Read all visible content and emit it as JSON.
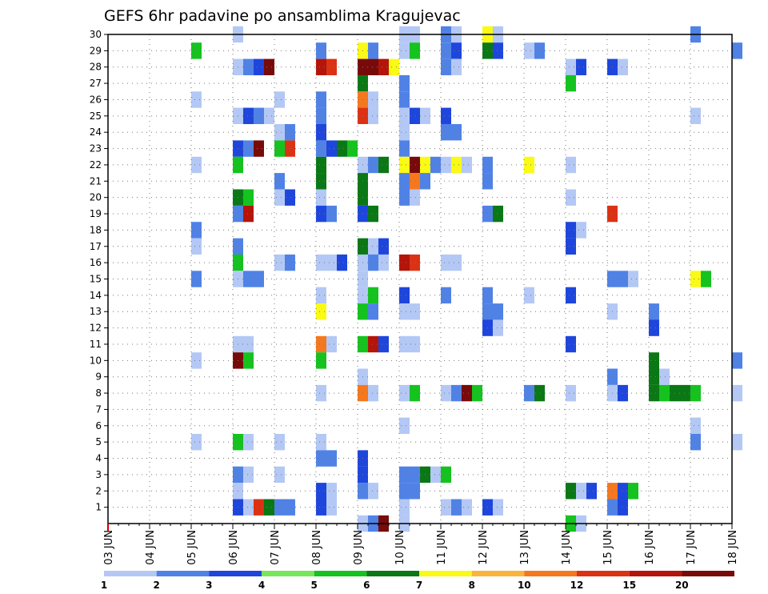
{
  "chart_data": {
    "type": "heatmap",
    "title": "GEFS 6hr padavine po ansamblima Kragujevac",
    "x_labels": [
      "03 JUN",
      "04 JUN",
      "05 JUN",
      "06 JUN",
      "07 JUN",
      "08 JUN",
      "09 JUN",
      "10 JUN",
      "11 JUN",
      "12 JUN",
      "13 JUN",
      "14 JUN",
      "15 JUN",
      "16 JUN",
      "17 JUN",
      "18 JUN"
    ],
    "y_labels": [
      "1",
      "2",
      "3",
      "4",
      "5",
      "6",
      "7",
      "8",
      "9",
      "10",
      "11",
      "12",
      "13",
      "14",
      "15",
      "16",
      "17",
      "18",
      "19",
      "20",
      "21",
      "22",
      "23",
      "24",
      "25",
      "26",
      "27",
      "28",
      "29",
      "30"
    ],
    "ylim": [
      0,
      30
    ],
    "x_steps": 61,
    "grid": true,
    "legend": {
      "placement": "bottom",
      "thresholds": [
        "1",
        "2",
        "3",
        "4",
        "5",
        "6",
        "7",
        "8",
        "10",
        "12",
        "15",
        "20"
      ],
      "colors": [
        "#b4c8f5",
        "#5082e6",
        "#1e46dc",
        "#78e65a",
        "#14c31e",
        "#0a7814",
        "#fafa14",
        "#fab43c",
        "#f5781e",
        "#dc3214",
        "#b4140a",
        "#780a0a"
      ]
    },
    "cells": [
      [
        30,
        "06 JUN",
        1
      ],
      [
        30,
        "10 JUN",
        1
      ],
      [
        30,
        "10 JUN",
        1
      ],
      [
        30,
        "11 JUN",
        2
      ],
      [
        30,
        "11 JUN",
        1
      ],
      [
        30,
        "12 JUN",
        7
      ],
      [
        30,
        "12 JUN",
        1
      ],
      [
        30,
        "17 JUN",
        2
      ],
      [
        29,
        "05 JUN",
        5
      ],
      [
        29,
        "08 JUN",
        2
      ],
      [
        29,
        "09 JUN",
        7
      ],
      [
        29,
        "09 JUN",
        2
      ],
      [
        29,
        "10 JUN",
        1
      ],
      [
        29,
        "10 JUN",
        5
      ],
      [
        29,
        "11 JUN",
        2
      ],
      [
        29,
        "11 JUN",
        3
      ],
      [
        29,
        "12 JUN",
        6
      ],
      [
        29,
        "12 JUN",
        3
      ],
      [
        29,
        "13 JUN",
        1
      ],
      [
        29,
        "13 JUN",
        2
      ],
      [
        29,
        "18 JUN",
        2
      ],
      [
        28,
        "06 JUN",
        1
      ],
      [
        28,
        "06 JUN",
        2
      ],
      [
        28,
        "06 JUN",
        3
      ],
      [
        28,
        "06 JUN",
        20
      ],
      [
        28,
        "08 JUN",
        15
      ],
      [
        28,
        "08 JUN",
        12
      ],
      [
        28,
        "09 JUN",
        20
      ],
      [
        28,
        "09 JUN",
        20
      ],
      [
        28,
        "09 JUN",
        15
      ],
      [
        28,
        "09 JUN",
        7
      ],
      [
        28,
        "11 JUN",
        2
      ],
      [
        28,
        "11 JUN",
        1
      ],
      [
        28,
        "14 JUN",
        1
      ],
      [
        28,
        "14 JUN",
        3
      ],
      [
        28,
        "15 JUN",
        3
      ],
      [
        28,
        "15 JUN",
        1
      ],
      [
        27,
        "09 JUN",
        6
      ],
      [
        27,
        "10 JUN",
        2
      ],
      [
        27,
        "14 JUN",
        5
      ],
      [
        26,
        "05 JUN",
        1
      ],
      [
        26,
        "07 JUN",
        1
      ],
      [
        26,
        "08 JUN",
        2
      ],
      [
        26,
        "09 JUN",
        10
      ],
      [
        26,
        "09 JUN",
        1
      ],
      [
        26,
        "10 JUN",
        2
      ],
      [
        25,
        "06 JUN",
        1
      ],
      [
        25,
        "06 JUN",
        3
      ],
      [
        25,
        "06 JUN",
        2
      ],
      [
        25,
        "06 JUN",
        1
      ],
      [
        25,
        "08 JUN",
        2
      ],
      [
        25,
        "09 JUN",
        12
      ],
      [
        25,
        "09 JUN",
        1
      ],
      [
        25,
        "10 JUN",
        1
      ],
      [
        25,
        "10 JUN",
        3
      ],
      [
        25,
        "10 JUN",
        1
      ],
      [
        25,
        "11 JUN",
        3
      ],
      [
        25,
        "17 JUN",
        1
      ],
      [
        24,
        "07 JUN",
        1
      ],
      [
        24,
        "07 JUN",
        2
      ],
      [
        24,
        "08 JUN",
        3
      ],
      [
        24,
        "10 JUN",
        1
      ],
      [
        24,
        "11 JUN",
        2
      ],
      [
        24,
        "11 JUN",
        2
      ],
      [
        23,
        "06 JUN",
        3
      ],
      [
        23,
        "06 JUN",
        2
      ],
      [
        23,
        "06 JUN",
        20
      ],
      [
        23,
        "07 JUN",
        5
      ],
      [
        23,
        "07 JUN",
        12
      ],
      [
        23,
        "08 JUN",
        2
      ],
      [
        23,
        "08 JUN",
        3
      ],
      [
        23,
        "08 JUN",
        6
      ],
      [
        23,
        "08 JUN",
        5
      ],
      [
        23,
        "10 JUN",
        2
      ],
      [
        22,
        "05 JUN",
        1
      ],
      [
        22,
        "06 JUN",
        5
      ],
      [
        22,
        "08 JUN",
        6
      ],
      [
        22,
        "09 JUN",
        1
      ],
      [
        22,
        "09 JUN",
        2
      ],
      [
        22,
        "09 JUN",
        6
      ],
      [
        22,
        "10 JUN",
        7
      ],
      [
        22,
        "10 JUN",
        20
      ],
      [
        22,
        "10 JUN",
        7
      ],
      [
        22,
        "10 JUN",
        2
      ],
      [
        22,
        "11 JUN",
        1
      ],
      [
        22,
        "11 JUN",
        7
      ],
      [
        22,
        "11 JUN",
        1
      ],
      [
        22,
        "12 JUN",
        2
      ],
      [
        22,
        "13 JUN",
        7
      ],
      [
        22,
        "14 JUN",
        1
      ],
      [
        21,
        "07 JUN",
        2
      ],
      [
        21,
        "08 JUN",
        6
      ],
      [
        21,
        "09 JUN",
        6
      ],
      [
        21,
        "10 JUN",
        2
      ],
      [
        21,
        "10 JUN",
        10
      ],
      [
        21,
        "10 JUN",
        2
      ],
      [
        21,
        "12 JUN",
        2
      ],
      [
        20,
        "06 JUN",
        6
      ],
      [
        20,
        "06 JUN",
        5
      ],
      [
        20,
        "07 JUN",
        1
      ],
      [
        20,
        "07 JUN",
        3
      ],
      [
        20,
        "08 JUN",
        1
      ],
      [
        20,
        "09 JUN",
        6
      ],
      [
        20,
        "10 JUN",
        2
      ],
      [
        20,
        "10 JUN",
        1
      ],
      [
        20,
        "14 JUN",
        1
      ],
      [
        19,
        "06 JUN",
        2
      ],
      [
        19,
        "06 JUN",
        15
      ],
      [
        19,
        "08 JUN",
        3
      ],
      [
        19,
        "08 JUN",
        2
      ],
      [
        19,
        "09 JUN",
        3
      ],
      [
        19,
        "09 JUN",
        6
      ],
      [
        19,
        "12 JUN",
        2
      ],
      [
        19,
        "12 JUN",
        6
      ],
      [
        19,
        "15 JUN",
        12
      ],
      [
        18,
        "05 JUN",
        2
      ],
      [
        18,
        "14 JUN",
        3
      ],
      [
        18,
        "14 JUN",
        1
      ],
      [
        17,
        "05 JUN",
        1
      ],
      [
        17,
        "06 JUN",
        2
      ],
      [
        17,
        "09 JUN",
        6
      ],
      [
        17,
        "09 JUN",
        1
      ],
      [
        17,
        "09 JUN",
        3
      ],
      [
        17,
        "14 JUN",
        3
      ],
      [
        16,
        "06 JUN",
        5
      ],
      [
        16,
        "07 JUN",
        1
      ],
      [
        16,
        "07 JUN",
        2
      ],
      [
        16,
        "08 JUN",
        1
      ],
      [
        16,
        "08 JUN",
        1
      ],
      [
        16,
        "08 JUN",
        3
      ],
      [
        16,
        "09 JUN",
        1
      ],
      [
        16,
        "09 JUN",
        2
      ],
      [
        16,
        "09 JUN",
        1
      ],
      [
        16,
        "10 JUN",
        15
      ],
      [
        16,
        "10 JUN",
        12
      ],
      [
        16,
        "11 JUN",
        1
      ],
      [
        16,
        "11 JUN",
        1
      ],
      [
        15,
        "05 JUN",
        2
      ],
      [
        15,
        "06 JUN",
        1
      ],
      [
        15,
        "06 JUN",
        2
      ],
      [
        15,
        "06 JUN",
        2
      ],
      [
        15,
        "09 JUN",
        1
      ],
      [
        15,
        "15 JUN",
        2
      ],
      [
        15,
        "15 JUN",
        2
      ],
      [
        15,
        "15 JUN",
        1
      ],
      [
        15,
        "17 JUN",
        7
      ],
      [
        15,
        "17 JUN",
        5
      ],
      [
        14,
        "08 JUN",
        1
      ],
      [
        14,
        "09 JUN",
        1
      ],
      [
        14,
        "09 JUN",
        5
      ],
      [
        14,
        "10 JUN",
        3
      ],
      [
        14,
        "11 JUN",
        2
      ],
      [
        14,
        "12 JUN",
        2
      ],
      [
        14,
        "13 JUN",
        1
      ],
      [
        14,
        "14 JUN",
        3
      ],
      [
        13,
        "08 JUN",
        7
      ],
      [
        13,
        "09 JUN",
        5
      ],
      [
        13,
        "09 JUN",
        2
      ],
      [
        13,
        "10 JUN",
        1
      ],
      [
        13,
        "10 JUN",
        1
      ],
      [
        13,
        "12 JUN",
        2
      ],
      [
        13,
        "12 JUN",
        2
      ],
      [
        13,
        "15 JUN",
        1
      ],
      [
        13,
        "16 JUN",
        2
      ],
      [
        12,
        "12 JUN",
        3
      ],
      [
        12,
        "12 JUN",
        1
      ],
      [
        12,
        "16 JUN",
        3
      ],
      [
        11,
        "06 JUN",
        1
      ],
      [
        11,
        "06 JUN",
        1
      ],
      [
        11,
        "08 JUN",
        10
      ],
      [
        11,
        "08 JUN",
        1
      ],
      [
        11,
        "09 JUN",
        5
      ],
      [
        11,
        "09 JUN",
        15
      ],
      [
        11,
        "09 JUN",
        3
      ],
      [
        11,
        "10 JUN",
        1
      ],
      [
        11,
        "10 JUN",
        1
      ],
      [
        11,
        "14 JUN",
        3
      ],
      [
        10,
        "05 JUN",
        1
      ],
      [
        10,
        "06 JUN",
        20
      ],
      [
        10,
        "06 JUN",
        5
      ],
      [
        10,
        "08 JUN",
        5
      ],
      [
        10,
        "16 JUN",
        6
      ],
      [
        10,
        "18 JUN",
        2
      ],
      [
        9,
        "09 JUN",
        1
      ],
      [
        9,
        "15 JUN",
        2
      ],
      [
        9,
        "16 JUN",
        6
      ],
      [
        9,
        "16 JUN",
        1
      ],
      [
        8,
        "08 JUN",
        1
      ],
      [
        8,
        "09 JUN",
        10
      ],
      [
        8,
        "09 JUN",
        1
      ],
      [
        8,
        "10 JUN",
        1
      ],
      [
        8,
        "10 JUN",
        5
      ],
      [
        8,
        "11 JUN",
        1
      ],
      [
        8,
        "11 JUN",
        2
      ],
      [
        8,
        "11 JUN",
        20
      ],
      [
        8,
        "11 JUN",
        5
      ],
      [
        8,
        "13 JUN",
        2
      ],
      [
        8,
        "13 JUN",
        6
      ],
      [
        8,
        "14 JUN",
        1
      ],
      [
        8,
        "15 JUN",
        1
      ],
      [
        8,
        "15 JUN",
        3
      ],
      [
        8,
        "16 JUN",
        6
      ],
      [
        8,
        "16 JUN",
        5
      ],
      [
        8,
        "16 JUN",
        6
      ],
      [
        8,
        "16 JUN",
        6
      ],
      [
        8,
        "17 JUN",
        5
      ],
      [
        8,
        "18 JUN",
        1
      ],
      [
        6,
        "10 JUN",
        1
      ],
      [
        6,
        "17 JUN",
        1
      ],
      [
        5,
        "05 JUN",
        1
      ],
      [
        5,
        "06 JUN",
        5
      ],
      [
        5,
        "06 JUN",
        1
      ],
      [
        5,
        "07 JUN",
        1
      ],
      [
        5,
        "08 JUN",
        1
      ],
      [
        5,
        "17 JUN",
        2
      ],
      [
        5,
        "18 JUN",
        1
      ],
      [
        4,
        "08 JUN",
        2
      ],
      [
        4,
        "08 JUN",
        2
      ],
      [
        4,
        "09 JUN",
        3
      ],
      [
        3,
        "06 JUN",
        2
      ],
      [
        3,
        "06 JUN",
        1
      ],
      [
        3,
        "07 JUN",
        1
      ],
      [
        3,
        "09 JUN",
        3
      ],
      [
        3,
        "10 JUN",
        2
      ],
      [
        3,
        "10 JUN",
        2
      ],
      [
        3,
        "10 JUN",
        6
      ],
      [
        3,
        "10 JUN",
        1
      ],
      [
        3,
        "11 JUN",
        5
      ],
      [
        2,
        "06 JUN",
        1
      ],
      [
        2,
        "08 JUN",
        3
      ],
      [
        2,
        "08 JUN",
        1
      ],
      [
        2,
        "09 JUN",
        2
      ],
      [
        2,
        "09 JUN",
        1
      ],
      [
        2,
        "10 JUN",
        2
      ],
      [
        2,
        "10 JUN",
        2
      ],
      [
        2,
        "14 JUN",
        6
      ],
      [
        2,
        "14 JUN",
        1
      ],
      [
        2,
        "14 JUN",
        3
      ],
      [
        2,
        "15 JUN",
        10
      ],
      [
        2,
        "15 JUN",
        3
      ],
      [
        2,
        "15 JUN",
        5
      ],
      [
        1,
        "06 JUN",
        3
      ],
      [
        1,
        "06 JUN",
        1
      ],
      [
        1,
        "06 JUN",
        12
      ],
      [
        1,
        "06 JUN",
        6
      ],
      [
        1,
        "07 JUN",
        2
      ],
      [
        1,
        "07 JUN",
        2
      ],
      [
        1,
        "08 JUN",
        3
      ],
      [
        1,
        "08 JUN",
        1
      ],
      [
        1,
        "10 JUN",
        1
      ],
      [
        1,
        "11 JUN",
        1
      ],
      [
        1,
        "11 JUN",
        2
      ],
      [
        1,
        "11 JUN",
        1
      ],
      [
        1,
        "12 JUN",
        3
      ],
      [
        1,
        "12 JUN",
        1
      ],
      [
        1,
        "15 JUN",
        2
      ],
      [
        1,
        "15 JUN",
        3
      ],
      [
        0,
        "09 JUN",
        1
      ],
      [
        0,
        "09 JUN",
        2
      ],
      [
        0,
        "09 JUN",
        20
      ],
      [
        0,
        "10 JUN",
        1
      ],
      [
        0,
        "14 JUN",
        5
      ],
      [
        0,
        "14 JUN",
        1
      ]
    ]
  }
}
